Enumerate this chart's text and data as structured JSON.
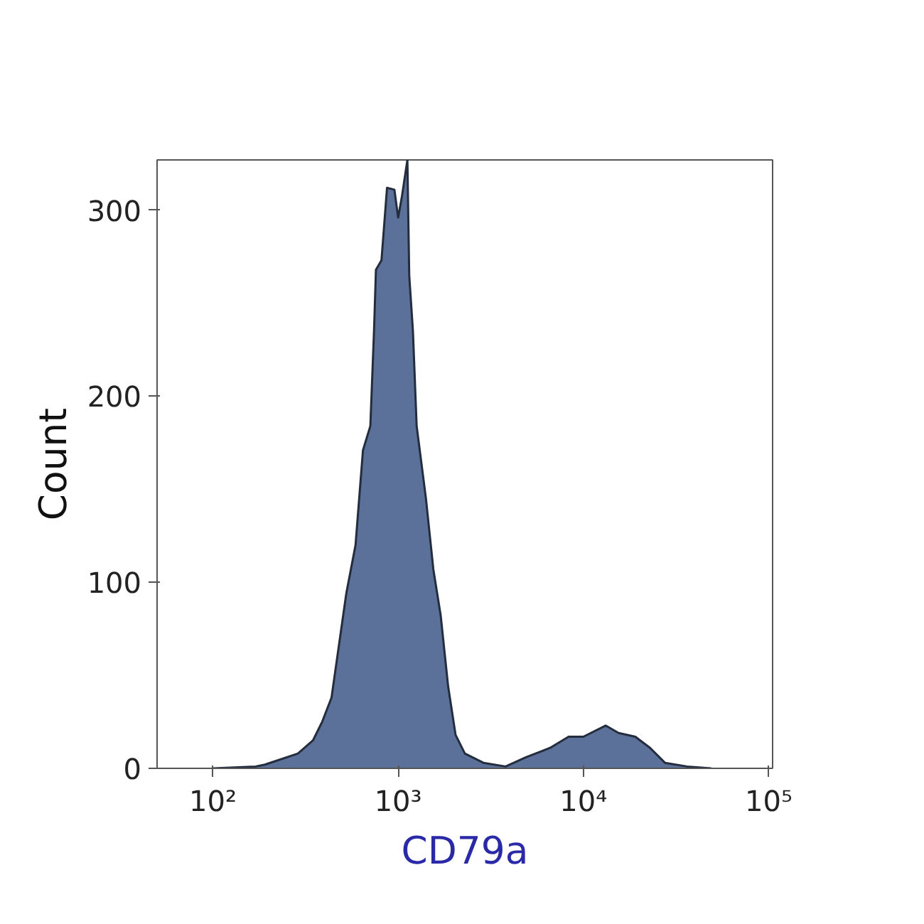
{
  "chart_data": {
    "type": "area",
    "xlabel": "CD79a",
    "ylabel": "Count",
    "log": "x",
    "xlim": [
      50,
      105000
    ],
    "ylim": [
      0,
      327
    ],
    "xticks": [
      {
        "value": 100,
        "label": "10²"
      },
      {
        "value": 1000,
        "label": "10³"
      },
      {
        "value": 10000,
        "label": "10⁴"
      },
      {
        "value": 100000,
        "label": "10⁵"
      }
    ],
    "yticks": [
      0,
      100,
      200,
      300
    ],
    "series": [
      {
        "color": "#5b7199",
        "x": [
          100,
          170,
          191,
          288,
          347,
          389,
          437,
          479,
          525,
          589,
          646,
          708,
          741,
          759,
          813,
          871,
          955,
          1000,
          1047,
          1122,
          1148,
          1202,
          1259,
          1413,
          1549,
          1698,
          1862,
          2042,
          2291,
          2884,
          3802,
          4898,
          6607,
          8318,
          10000,
          13183,
          15488,
          19055,
          22909,
          27542,
          36308,
          48978
        ],
        "values": [
          0,
          1,
          2,
          8,
          15,
          25,
          38,
          66,
          94,
          120,
          171,
          184,
          235,
          268,
          273,
          312,
          311,
          296,
          307,
          327,
          265,
          235,
          184,
          145,
          107,
          82,
          44,
          18,
          8,
          3,
          1,
          6,
          11,
          17,
          17,
          23,
          19,
          17,
          11,
          3,
          1,
          0
        ]
      }
    ]
  }
}
